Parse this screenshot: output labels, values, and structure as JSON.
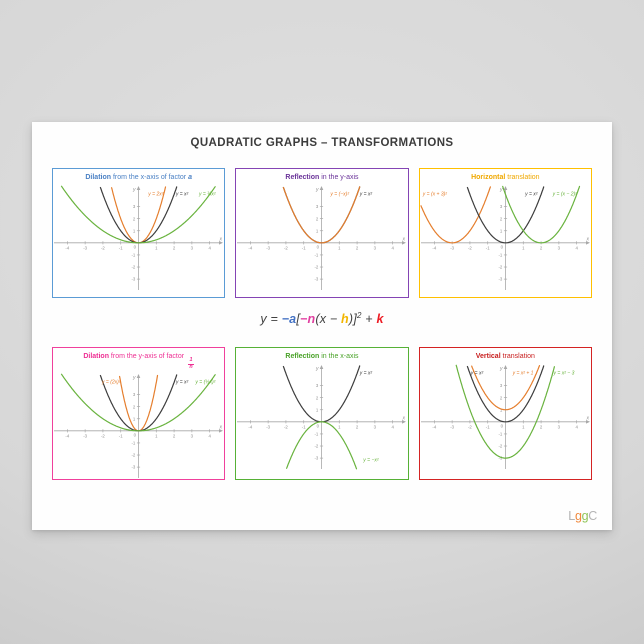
{
  "poster": {
    "title": "QUADRATIC GRAPHS – TRANSFORMATIONS",
    "logo_letters": [
      {
        "ch": "L",
        "color": "#b4b4b4"
      },
      {
        "ch": "g",
        "color": "#f0883b"
      },
      {
        "ch": "g",
        "color": "#8fc457"
      },
      {
        "ch": "C",
        "color": "#b4b4b4"
      }
    ]
  },
  "formula": {
    "pieces": [
      {
        "t": "y = ",
        "c": "#404040"
      },
      {
        "t": "−a",
        "c": "#4472c4",
        "b": 1
      },
      {
        "t": "[",
        "c": "#404040"
      },
      {
        "t": "−n",
        "c": "#e13ea0",
        "b": 1
      },
      {
        "t": "(x − ",
        "c": "#404040"
      },
      {
        "t": "h",
        "c": "#f2b600",
        "b": 1
      },
      {
        "t": ")]",
        "c": "#404040"
      },
      {
        "t": "2",
        "c": "#404040",
        "sup": 1
      },
      {
        "t": " + ",
        "c": "#404040"
      },
      {
        "t": "k",
        "c": "#ed1c24",
        "b": 1
      }
    ]
  },
  "panels": [
    {
      "key": "dilation-x",
      "border": "#5b9bd5",
      "accent": "#4a80c4",
      "bold": "Dilation",
      "rest": " from the x-axis of factor ",
      "variable": "a"
    },
    {
      "key": "reflection-y",
      "border": "#8444b4",
      "accent": "#6a3399",
      "bold": "Reflection",
      "rest": " in the y-axis",
      "variable": ""
    },
    {
      "key": "horizontal-translation",
      "border": "#ffc000",
      "accent": "#f0a800",
      "bold": "Horizontal",
      "rest": " translation",
      "variable": ""
    },
    {
      "key": "dilation-y",
      "border": "#f0409c",
      "accent": "#ee2f93",
      "bold": "Dilation",
      "rest": " from the y-axis of factor ",
      "frac_num": "1",
      "frac_den": "n"
    },
    {
      "key": "reflection-x",
      "border": "#56b136",
      "accent": "#49a228",
      "bold": "Reflection",
      "rest": " in the x-axis",
      "variable": ""
    },
    {
      "key": "vertical-translation",
      "border": "#d42323",
      "accent": "#c81e1e",
      "bold": "Vertical",
      "rest": " translation",
      "variable": ""
    }
  ],
  "chart_data": {
    "type": "line",
    "axis": {
      "xmin": -4.75,
      "xmax": 4.75,
      "ymin": -3.9,
      "ymax": 4.7,
      "xticks": [
        -4,
        -3,
        -2,
        -1,
        1,
        2,
        3,
        4
      ],
      "yticks": [
        -3,
        -2,
        -1,
        1,
        2,
        3
      ],
      "xlabel": "x",
      "ylabel": "y",
      "origin_label": "0",
      "grid": false
    },
    "charts": [
      {
        "title": "Dilation from the x-axis of factor a",
        "curves": [
          {
            "equation": "y = 2x²",
            "a": 2,
            "h": 0,
            "k": 0,
            "color": "#e57e2d",
            "label": "y = 2x²",
            "lx": 0.55,
            "ly": 3.9
          },
          {
            "equation": "y = x²",
            "a": 1,
            "h": 0,
            "k": 0,
            "color": "#3d3d3d",
            "label": "y = x²",
            "lx": 2.1,
            "ly": 3.9
          },
          {
            "equation": "y = ¼x²",
            "a": 0.25,
            "h": 0,
            "k": 0,
            "color": "#69b33e",
            "label": "y = ¼x²",
            "lx": 3.4,
            "ly": 3.9
          }
        ]
      },
      {
        "title": "Reflection in the y-axis",
        "curves": [
          {
            "equation": "y = x²",
            "a": 1,
            "h": 0,
            "k": 0,
            "color": "#3d3d3d",
            "label": "y = x²",
            "lx": 2.15,
            "ly": 3.9
          },
          {
            "equation": "y = (−x)²",
            "a": 1,
            "h": 0,
            "k": 0,
            "color": "#e57e2d",
            "label": "y = (−x)²",
            "lx": 0.5,
            "ly": 3.9
          }
        ]
      },
      {
        "title": "Horizontal translation",
        "curves": [
          {
            "equation": "y = (x + 3)²",
            "a": 1,
            "h": -3,
            "k": 0,
            "color": "#e57e2d",
            "label": "y = (x + 3)²",
            "lx": -4.65,
            "ly": 3.9
          },
          {
            "equation": "y = x²",
            "a": 1,
            "h": 0,
            "k": 0,
            "color": "#3d3d3d",
            "label": "y = x²",
            "lx": 1.1,
            "ly": 3.9
          },
          {
            "equation": "y = (x − 2)²",
            "a": 1,
            "h": 2,
            "k": 0,
            "color": "#69b33e",
            "label": "y = (x − 2)²",
            "lx": 2.65,
            "ly": 3.9
          }
        ]
      },
      {
        "title": "Dilation from the y-axis of factor 1/n",
        "curves": [
          {
            "equation": "y = (2x)²",
            "a": 4,
            "h": 0,
            "k": 0,
            "color": "#e57e2d",
            "label": "y = (2x)²",
            "lx": -2.05,
            "ly": 3.9
          },
          {
            "equation": "y = x²",
            "a": 1,
            "h": 0,
            "k": 0,
            "color": "#3d3d3d",
            "label": "y = x²",
            "lx": 2.1,
            "ly": 3.9
          },
          {
            "equation": "y = (½x)²",
            "a": 0.25,
            "h": 0,
            "k": 0,
            "color": "#69b33e",
            "label": "y = (½x)²",
            "lx": 3.2,
            "ly": 3.9
          }
        ]
      },
      {
        "title": "Reflection in the x-axis",
        "curves": [
          {
            "equation": "y = x²",
            "a": 1,
            "h": 0,
            "k": 0,
            "color": "#3d3d3d",
            "label": "y = x²",
            "lx": 2.15,
            "ly": 3.9
          },
          {
            "equation": "y = −x²",
            "a": -1,
            "h": 0,
            "k": 0,
            "color": "#69b33e",
            "label": "y = −x²",
            "lx": 2.35,
            "ly": -3.3
          }
        ]
      },
      {
        "title": "Vertical translation",
        "curves": [
          {
            "equation": "y = x²",
            "a": 1,
            "h": 0,
            "k": 0,
            "color": "#3d3d3d",
            "label": "y = x²",
            "lx": -1.95,
            "ly": 3.9
          },
          {
            "equation": "y = x² + 1",
            "a": 1,
            "h": 0,
            "k": 1,
            "color": "#e57e2d",
            "label": "y = x² + 1",
            "lx": 0.4,
            "ly": 3.9
          },
          {
            "equation": "y = x² − 3",
            "a": 1,
            "h": 0,
            "k": -3,
            "color": "#69b33e",
            "label": "y = x² − 3",
            "lx": 2.7,
            "ly": 3.9
          }
        ]
      }
    ]
  }
}
